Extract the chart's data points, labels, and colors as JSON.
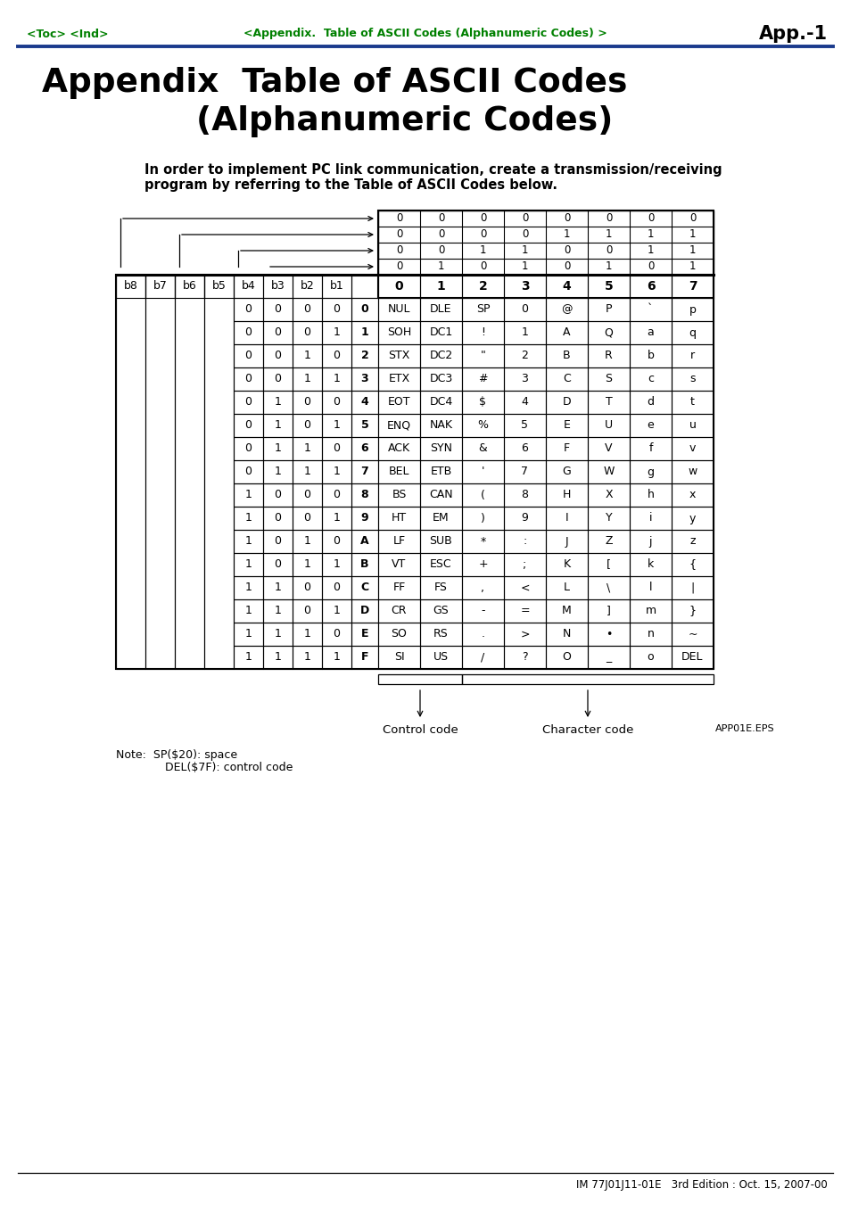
{
  "page_title_line1": "Appendix  Table of ASCII Codes",
  "page_title_line2": "(Alphanumeric Codes)",
  "header_nav_left": "<Toc> <Ind>",
  "header_nav_center": "<Appendix.  Table of ASCII Codes (Alphanumeric Codes) >",
  "header_nav_right": "App.-1",
  "intro_text_1": "In order to implement PC link communication, create a transmission/receiving",
  "intro_text_2": "program by referring to the Table of ASCII Codes below.",
  "footer_text": "IM 77J01J11-01E   3rd Edition : Oct. 15, 2007-00",
  "note_line1": "Note:  SP($20): space",
  "note_line2": "          DEL($7F): control code",
  "control_code_label": "Control code",
  "character_code_label": "Character code",
  "eps_label": "APP01E.EPS",
  "bit_header_vals": [
    [
      0,
      0,
      0,
      0,
      0,
      0,
      0,
      0
    ],
    [
      0,
      0,
      0,
      0,
      1,
      1,
      1,
      1
    ],
    [
      0,
      0,
      1,
      1,
      0,
      0,
      1,
      1
    ],
    [
      0,
      1,
      0,
      1,
      0,
      1,
      0,
      1
    ]
  ],
  "col_headers": [
    "0",
    "1",
    "2",
    "3",
    "4",
    "5",
    "6",
    "7"
  ],
  "table_rows": [
    [
      "0",
      "0",
      "0",
      "0",
      "0",
      "NUL",
      "DLE",
      "SP",
      "0",
      "@",
      "P",
      "`",
      "p"
    ],
    [
      "0",
      "0",
      "0",
      "1",
      "1",
      "SOH",
      "DC1",
      "!",
      "1",
      "A",
      "Q",
      "a",
      "q"
    ],
    [
      "0",
      "0",
      "1",
      "0",
      "2",
      "STX",
      "DC2",
      "\"",
      "2",
      "B",
      "R",
      "b",
      "r"
    ],
    [
      "0",
      "0",
      "1",
      "1",
      "3",
      "ETX",
      "DC3",
      "#",
      "3",
      "C",
      "S",
      "c",
      "s"
    ],
    [
      "0",
      "1",
      "0",
      "0",
      "4",
      "EOT",
      "DC4",
      "$",
      "4",
      "D",
      "T",
      "d",
      "t"
    ],
    [
      "0",
      "1",
      "0",
      "1",
      "5",
      "ENQ",
      "NAK",
      "%",
      "5",
      "E",
      "U",
      "e",
      "u"
    ],
    [
      "0",
      "1",
      "1",
      "0",
      "6",
      "ACK",
      "SYN",
      "&",
      "6",
      "F",
      "V",
      "f",
      "v"
    ],
    [
      "0",
      "1",
      "1",
      "1",
      "7",
      "BEL",
      "ETB",
      "'",
      "7",
      "G",
      "W",
      "g",
      "w"
    ],
    [
      "1",
      "0",
      "0",
      "0",
      "8",
      "BS",
      "CAN",
      "(",
      "8",
      "H",
      "X",
      "h",
      "x"
    ],
    [
      "1",
      "0",
      "0",
      "1",
      "9",
      "HT",
      "EM",
      ")",
      "9",
      "I",
      "Y",
      "i",
      "y"
    ],
    [
      "1",
      "0",
      "1",
      "0",
      "A",
      "LF",
      "SUB",
      "*",
      ":",
      "J",
      "Z",
      "j",
      "z"
    ],
    [
      "1",
      "0",
      "1",
      "1",
      "B",
      "VT",
      "ESC",
      "+",
      ";",
      "K",
      "[",
      "k",
      "{"
    ],
    [
      "1",
      "1",
      "0",
      "0",
      "C",
      "FF",
      "FS",
      ",",
      "<",
      "L",
      "\\",
      "l",
      "|"
    ],
    [
      "1",
      "1",
      "0",
      "1",
      "D",
      "CR",
      "GS",
      "-",
      "=",
      "M",
      "]",
      "m",
      "}"
    ],
    [
      "1",
      "1",
      "1",
      "0",
      "E",
      "SO",
      "RS",
      ".",
      ">",
      "N",
      "•",
      "n",
      "~"
    ],
    [
      "1",
      "1",
      "1",
      "1",
      "F",
      "SI",
      "US",
      "/",
      "?",
      "O",
      "_",
      "o",
      "DEL"
    ]
  ],
  "green_color": "#008000",
  "blue_line_color": "#1a3a8c",
  "bg_color": "#ffffff"
}
